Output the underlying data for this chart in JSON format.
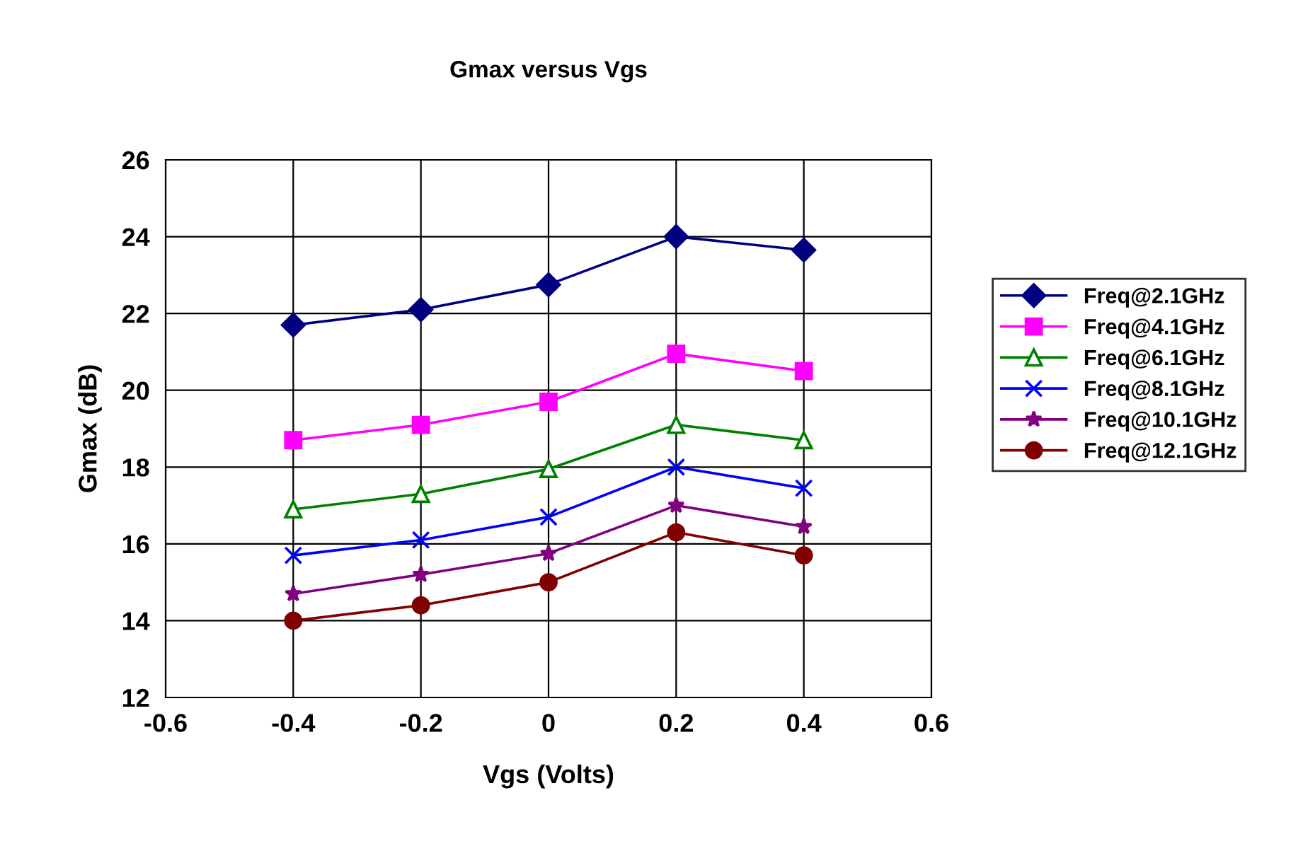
{
  "chart_data": {
    "type": "line",
    "title": "Gmax versus Vgs",
    "xlabel": "Vgs (Volts)",
    "ylabel": "Gmax (dB)",
    "x": [
      -0.4,
      -0.2,
      0,
      0.2,
      0.4
    ],
    "series": [
      {
        "name": "Freq@2.1GHz",
        "color": "#000080",
        "marker": "diamond",
        "values": [
          21.7,
          22.1,
          22.75,
          24.0,
          23.65
        ]
      },
      {
        "name": "Freq@4.1GHz",
        "color": "#ff00ff",
        "marker": "square",
        "values": [
          18.7,
          19.1,
          19.7,
          20.95,
          20.5
        ]
      },
      {
        "name": "Freq@6.1GHz",
        "color": "#008000",
        "marker": "triangle",
        "values": [
          16.9,
          17.3,
          17.95,
          19.1,
          18.7
        ]
      },
      {
        "name": "Freq@8.1GHz",
        "color": "#0000ff",
        "marker": "cross",
        "values": [
          15.7,
          16.1,
          16.7,
          18.0,
          17.45
        ]
      },
      {
        "name": "Freq@10.1GHz",
        "color": "#800080",
        "marker": "star",
        "values": [
          14.7,
          15.2,
          15.75,
          17.0,
          16.45
        ]
      },
      {
        "name": "Freq@12.1GHz",
        "color": "#800000",
        "marker": "circle",
        "values": [
          14.0,
          14.4,
          15.0,
          16.3,
          15.7
        ]
      }
    ],
    "xlim": [
      -0.6,
      0.6
    ],
    "xticks": [
      -0.6,
      -0.4,
      -0.2,
      0,
      0.2,
      0.4,
      0.6
    ],
    "ylim": [
      12,
      26
    ],
    "yticks": [
      12,
      14,
      16,
      18,
      20,
      22,
      24,
      26
    ],
    "grid": true,
    "legend": "right",
    "line_style": "solid"
  }
}
